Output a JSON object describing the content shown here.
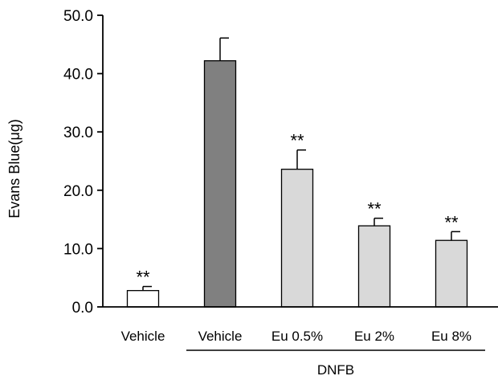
{
  "chart_data": {
    "type": "bar",
    "title": "",
    "ylabel": "Evans Blue(μg)",
    "xlabel": "",
    "ylim": [
      0,
      50
    ],
    "yticks": [
      "0.0",
      "10.0",
      "20.0",
      "30.0",
      "40.0",
      "50.0"
    ],
    "categories": [
      "Vehicle",
      "Vehicle",
      "Eu 0.5%",
      "Eu 2%",
      "Eu 8%"
    ],
    "values": [
      2.8,
      42.2,
      23.6,
      13.9,
      11.4
    ],
    "errors": [
      0.7,
      3.9,
      3.3,
      1.3,
      1.5
    ],
    "significance": [
      "**",
      "",
      "**",
      "**",
      "**"
    ],
    "bar_colors": [
      "#ffffff",
      "#808080",
      "#d9d9d9",
      "#d9d9d9",
      "#d9d9d9"
    ],
    "group_label": "DNFB",
    "group_span": [
      1,
      4
    ]
  }
}
